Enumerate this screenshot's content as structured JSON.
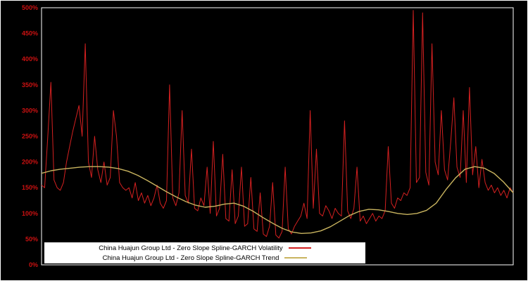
{
  "chart_data": {
    "type": "line",
    "title": "",
    "xlabel": "",
    "ylabel": "",
    "ylim": [
      0,
      500
    ],
    "x_range": [
      0,
      1
    ],
    "grid": false,
    "background_color": "#000000",
    "plot_border_color": "#ffffff",
    "tick_label_color": "#cc1111",
    "legend_position": "bottom-inside",
    "legend_background": "#ffffff",
    "y_ticks": [
      {
        "value": 0,
        "label": "0%"
      },
      {
        "value": 50,
        "label": "50%"
      },
      {
        "value": 100,
        "label": "100%"
      },
      {
        "value": 150,
        "label": "150%"
      },
      {
        "value": 200,
        "label": "200%"
      },
      {
        "value": 250,
        "label": "250%"
      },
      {
        "value": 300,
        "label": "300%"
      },
      {
        "value": 350,
        "label": "350%"
      },
      {
        "value": 400,
        "label": "400%"
      },
      {
        "value": 450,
        "label": "450%"
      },
      {
        "value": 500,
        "label": "500%"
      }
    ],
    "series": [
      {
        "name": "China Huajun Group Ltd - Zero Slope Spline-GARCH Volatility",
        "color": "#d42020",
        "stroke_width": 1,
        "values": [
          155,
          150,
          250,
          355,
          165,
          150,
          145,
          160,
          200,
          230,
          260,
          285,
          310,
          250,
          430,
          200,
          170,
          250,
          185,
          160,
          200,
          155,
          170,
          300,
          250,
          160,
          150,
          145,
          150,
          130,
          160,
          125,
          140,
          120,
          135,
          115,
          130,
          155,
          120,
          110,
          125,
          350,
          130,
          115,
          140,
          300,
          135,
          120,
          225,
          110,
          105,
          130,
          115,
          190,
          100,
          240,
          95,
          110,
          215,
          90,
          85,
          185,
          80,
          95,
          190,
          75,
          80,
          170,
          70,
          65,
          140,
          60,
          55,
          75,
          160,
          58,
          52,
          65,
          190,
          70,
          60,
          75,
          85,
          95,
          120,
          90,
          300,
          110,
          225,
          100,
          95,
          115,
          105,
          90,
          110,
          100,
          95,
          280,
          105,
          90,
          110,
          190,
          85,
          95,
          80,
          90,
          100,
          85,
          95,
          90,
          105,
          230,
          120,
          110,
          130,
          125,
          140,
          135,
          150,
          495,
          160,
          170,
          490,
          180,
          155,
          430,
          200,
          175,
          300,
          185,
          165,
          240,
          325,
          190,
          170,
          300,
          160,
          345,
          175,
          230,
          150,
          205,
          160,
          145,
          155,
          140,
          150,
          135,
          145,
          130,
          150,
          140
        ]
      },
      {
        "name": "China Huajun Group Ltd - Zero Slope Spline-GARCH Trend",
        "color": "#c9b45f",
        "stroke_width": 1.4,
        "values": [
          178,
          183,
          186,
          188,
          190,
          191,
          191,
          190,
          187,
          182,
          174,
          164,
          153,
          142,
          132,
          123,
          116,
          112,
          114,
          118,
          120,
          114,
          104,
          92,
          81,
          71,
          64,
          61,
          62,
          66,
          74,
          85,
          96,
          104,
          108,
          107,
          104,
          100,
          98,
          100,
          106,
          120,
          146,
          169,
          186,
          191,
          188,
          178,
          161,
          140
        ]
      }
    ]
  },
  "legend": {
    "items": [
      {
        "label": "China Huajun Group Ltd - Zero Slope Spline-GARCH Volatility",
        "color": "#d42020"
      },
      {
        "label": "China Huajun Group Ltd - Zero Slope Spline-GARCH Trend",
        "color": "#c9b45f"
      }
    ]
  }
}
